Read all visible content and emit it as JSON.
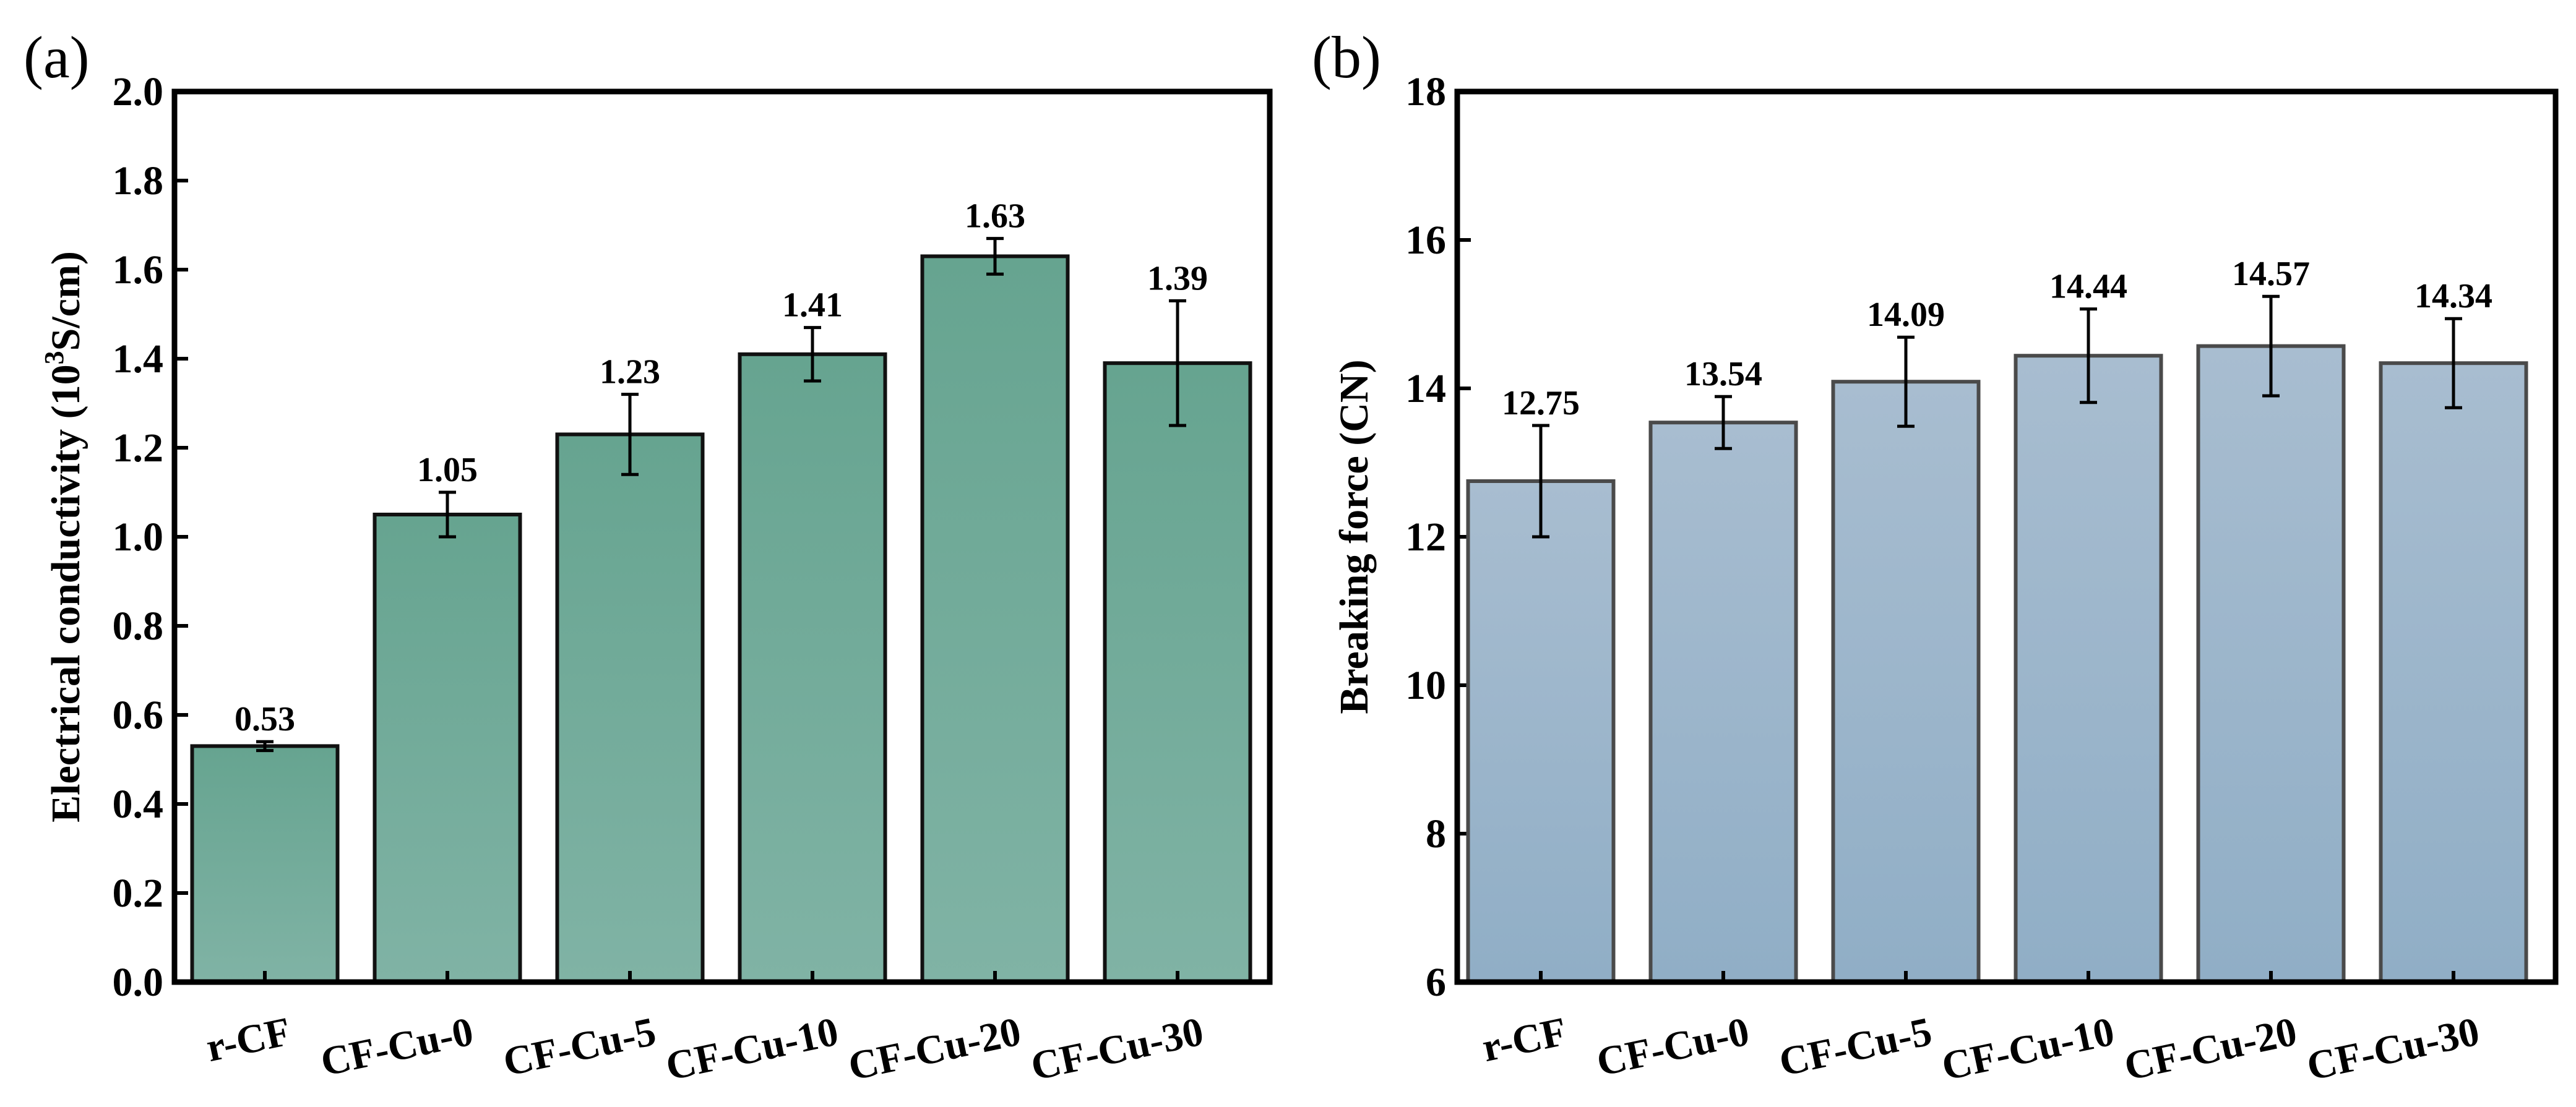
{
  "chart_data": [
    {
      "panel": "(a)",
      "type": "bar",
      "categories": [
        "r-CF",
        "CF-Cu-0",
        "CF-Cu-5",
        "CF-Cu-10",
        "CF-Cu-20",
        "CF-Cu-30"
      ],
      "values": [
        0.53,
        1.05,
        1.23,
        1.41,
        1.63,
        1.39
      ],
      "value_labels": [
        "0.53",
        "1.05",
        "1.23",
        "1.41",
        "1.63",
        "1.39"
      ],
      "errors": [
        0.01,
        0.05,
        0.09,
        0.06,
        0.04,
        0.14
      ],
      "ylabel_main": "Electrical conductivity (10",
      "ylabel_sup": "3",
      "ylabel_tail": "S/cm)",
      "xlabel": "",
      "ylim": [
        0,
        2.0
      ],
      "yticks": [
        "0.0",
        "0.2",
        "0.4",
        "0.6",
        "0.8",
        "1.0",
        "1.2",
        "1.4",
        "1.6",
        "1.8",
        "2.0"
      ],
      "bar_color_top": "#66a490",
      "bar_color_bottom": "#80b3a5",
      "bar_edge": "#111111"
    },
    {
      "panel": "(b)",
      "type": "bar",
      "categories": [
        "r-CF",
        "CF-Cu-0",
        "CF-Cu-5",
        "CF-Cu-10",
        "CF-Cu-20",
        "CF-Cu-30"
      ],
      "values": [
        12.75,
        13.54,
        14.09,
        14.44,
        14.57,
        14.34
      ],
      "value_labels": [
        "12.75",
        "13.54",
        "14.09",
        "14.44",
        "14.57",
        "14.34"
      ],
      "errors": [
        0.75,
        0.35,
        0.6,
        0.63,
        0.67,
        0.6
      ],
      "ylabel_main": "Breaking force (CN)",
      "ylabel_sup": "",
      "ylabel_tail": "",
      "xlabel": "",
      "ylim": [
        6,
        18
      ],
      "yticks": [
        "6",
        "8",
        "10",
        "12",
        "14",
        "16",
        "18"
      ],
      "bar_color_top": "#a8bdd0",
      "bar_color_bottom": "#90aec6",
      "bar_edge": "#4a4a4a"
    }
  ]
}
